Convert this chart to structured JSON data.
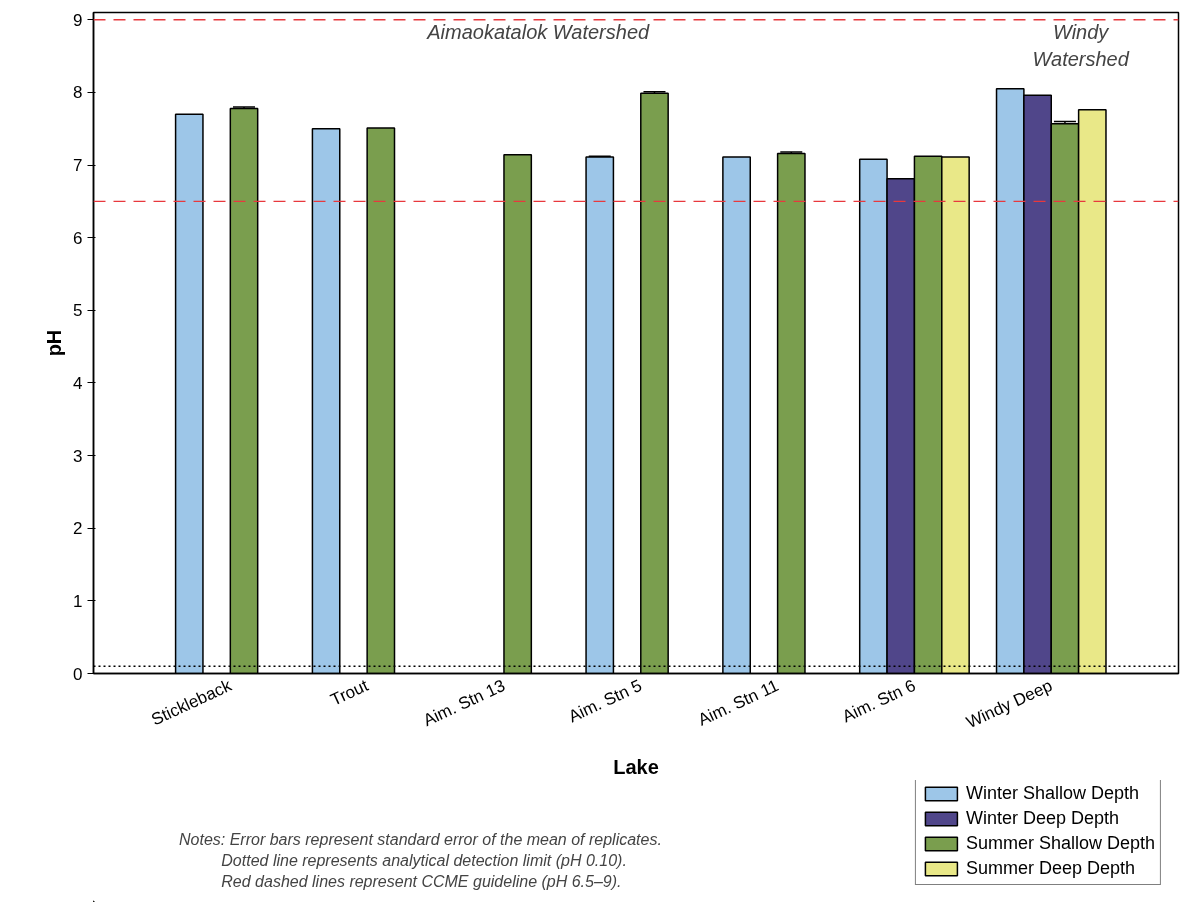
{
  "chart_data": {
    "type": "bar",
    "categories": [
      "Stickleback",
      "Trout",
      "Aim. Stn 13",
      "Aim. Stn 5",
      "Aim. Stn 11",
      "Aim. Stn 6",
      "Windy Deep"
    ],
    "series": [
      {
        "name": "Winter Shallow Depth",
        "color": "#9dc6e8",
        "values": [
          7.7,
          7.5,
          null,
          7.11,
          7.11,
          7.08,
          8.05
        ],
        "errors": [
          null,
          null,
          null,
          0.01,
          null,
          null,
          null
        ]
      },
      {
        "name": "Winter Deep Depth",
        "color": "#50468a",
        "values": [
          null,
          null,
          null,
          null,
          null,
          6.81,
          7.96
        ]
      },
      {
        "name": "Summer Shallow Depth",
        "color": "#7a9e4e",
        "values": [
          7.78,
          7.51,
          7.14,
          7.99,
          7.16,
          7.12,
          7.57
        ],
        "errors": [
          0.02,
          null,
          null,
          0.02,
          0.02,
          null,
          0.03
        ]
      },
      {
        "name": "Summer Deep Depth",
        "color": "#e9e888",
        "values": [
          null,
          null,
          null,
          null,
          null,
          7.11,
          7.76
        ]
      }
    ],
    "xlabel": "Lake",
    "ylabel": "pH",
    "ylim": [
      0,
      9.1
    ],
    "yticks": [
      0,
      1,
      2,
      3,
      4,
      5,
      6,
      7,
      8,
      9
    ],
    "grid": false,
    "legend": "bottom right",
    "ref_lines": [
      {
        "axis": "y",
        "value": 9,
        "color": "#e8383d",
        "line_style": "dashed"
      },
      {
        "axis": "y",
        "value": 6.5,
        "color": "#e8383d",
        "line_style": "dashed"
      },
      {
        "axis": "y",
        "value": 0.1,
        "color": "#000000",
        "line_style": "dotted"
      }
    ],
    "annotations": [
      "Aimaokatalok Watershed",
      "Windy\nWatershed",
      "Notes: Error bars represent standard error of the mean of replicates.",
      "Dotted line represents analytical detection limit (pH 0.10).",
      "Red dashed lines represent CCME guideline (pH 6.5–9)."
    ]
  }
}
